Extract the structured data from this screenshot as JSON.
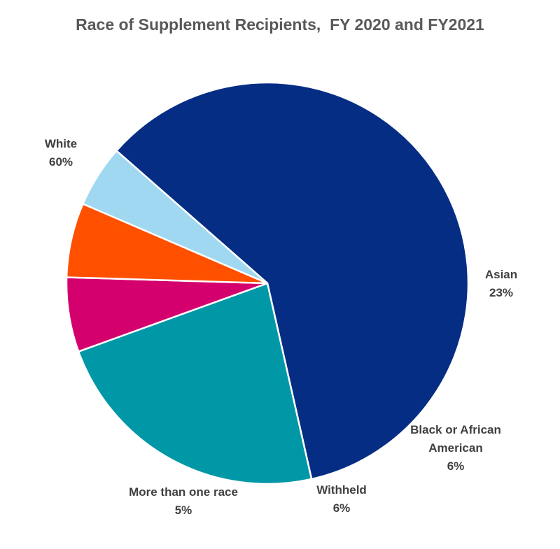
{
  "chart_data": {
    "type": "pie",
    "title": "Race of Supplement Recipients,  FY 2020 and FY2021",
    "slices": [
      {
        "label": [
          "White"
        ],
        "value": 60,
        "value_label": "60%",
        "color": "#052D84"
      },
      {
        "label": [
          "Asian"
        ],
        "value": 23,
        "value_label": "23%",
        "color": "#0097A7"
      },
      {
        "label": [
          "Black or African",
          "American"
        ],
        "value": 6,
        "value_label": "6%",
        "color": "#D4006E"
      },
      {
        "label": [
          "Withheld"
        ],
        "value": 6,
        "value_label": "6%",
        "color": "#FF5000"
      },
      {
        "label": [
          "More than one race"
        ],
        "value": 5,
        "value_label": "5%",
        "color": "#9FD8F0"
      }
    ],
    "legend": "none",
    "data_labels": "outside"
  }
}
